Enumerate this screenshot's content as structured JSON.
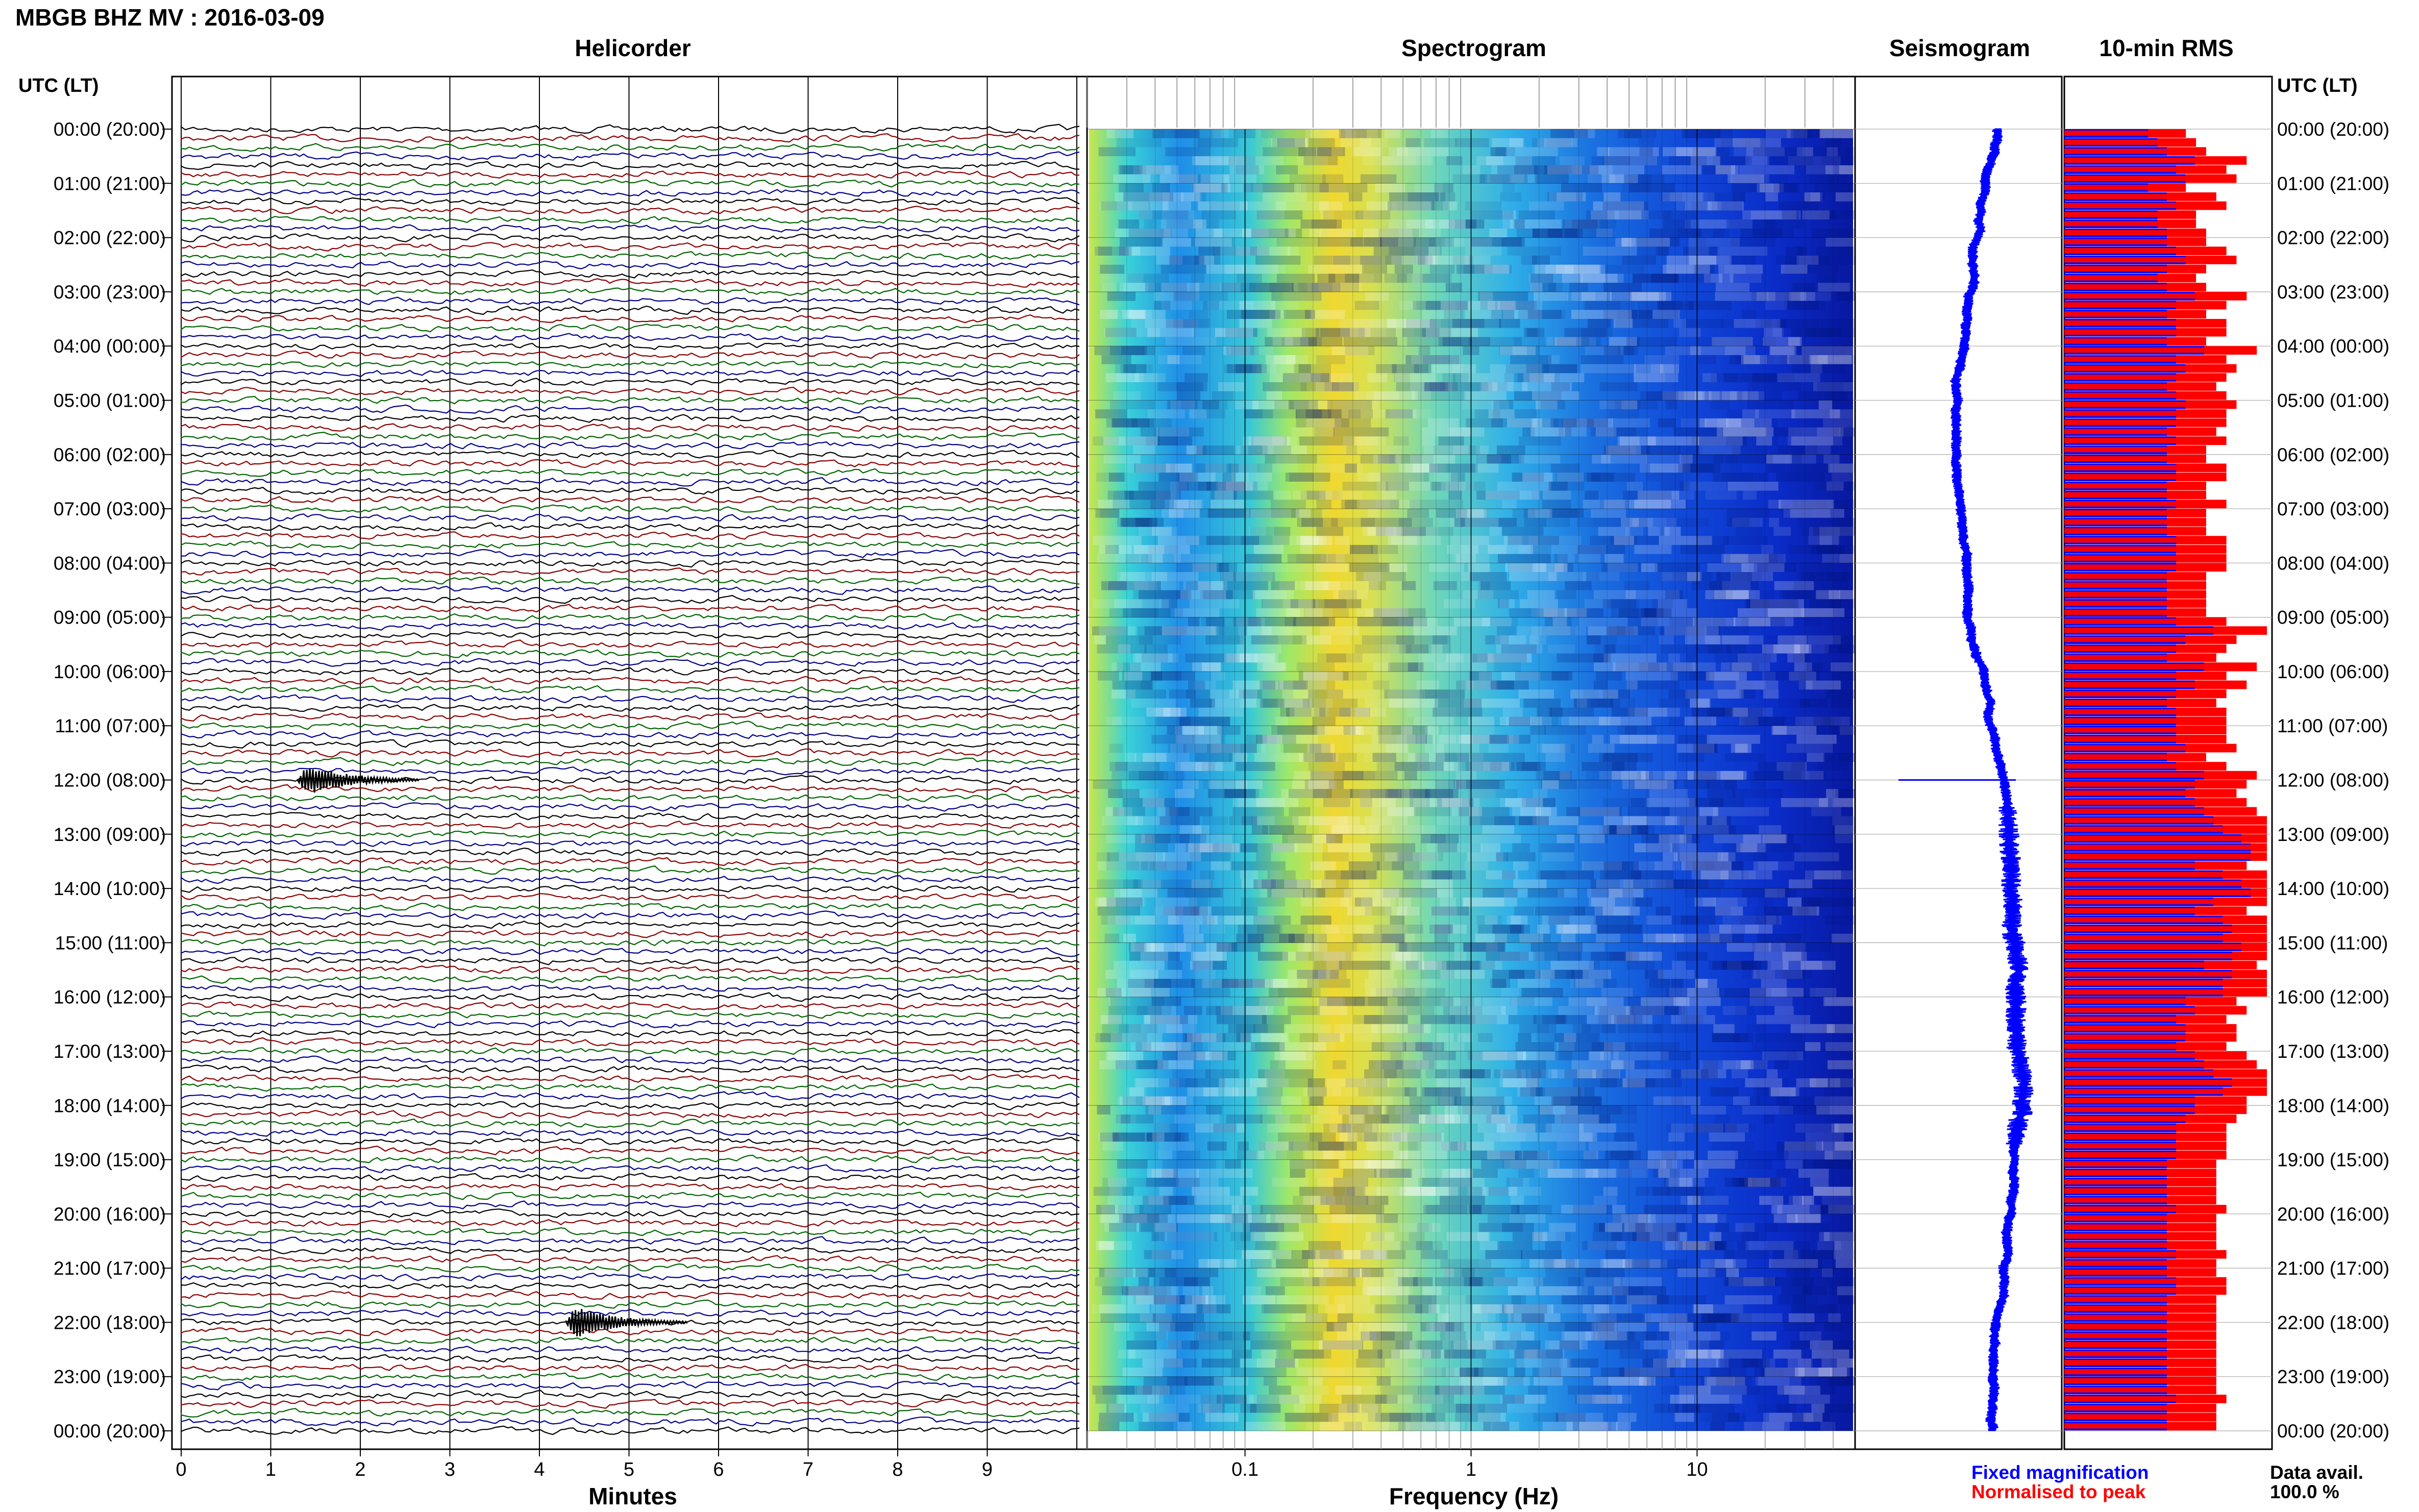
{
  "page": {
    "title": "MBGB BHZ MV : 2016-03-09",
    "left_axis_header": "UTC (LT)",
    "right_axis_header": "UTC (LT)"
  },
  "panels": {
    "helicorder": "Helicorder",
    "spectrogram": "Spectrogram",
    "seismogram": "Seismogram",
    "rms": "10-min RMS"
  },
  "axes": {
    "helicorder_xlabel": "Minutes",
    "spectrogram_xlabel": "Frequency (Hz)",
    "helicorder_ticks": [
      "0",
      "1",
      "2",
      "3",
      "4",
      "5",
      "6",
      "7",
      "8",
      "9"
    ],
    "spectrogram_ticks": [
      "0.1",
      "1",
      "10"
    ],
    "time_labels": [
      "00:00 (20:00)",
      "01:00 (21:00)",
      "02:00 (22:00)",
      "03:00 (23:00)",
      "04:00 (00:00)",
      "05:00 (01:00)",
      "06:00 (02:00)",
      "07:00 (03:00)",
      "08:00 (04:00)",
      "09:00 (05:00)",
      "10:00 (06:00)",
      "11:00 (07:00)",
      "12:00 (08:00)",
      "13:00 (09:00)",
      "14:00 (10:00)",
      "15:00 (11:00)",
      "16:00 (12:00)",
      "17:00 (13:00)",
      "18:00 (14:00)",
      "19:00 (15:00)",
      "20:00 (16:00)",
      "21:00 (17:00)",
      "22:00 (18:00)",
      "23:00 (19:00)",
      "00:00 (20:00)"
    ]
  },
  "legend": {
    "fixed": "Fixed magnification",
    "normalised": "Normalised to peak",
    "fixed_color": "#0000ff",
    "normalised_color": "#ff0000",
    "data_avail_label": "Data avail.",
    "data_avail_value": "100.0 %"
  },
  "chart_data": {
    "type": "heatmap",
    "trace_colors": [
      "#000000",
      "#8b0000",
      "#006400",
      "#00008b"
    ],
    "helicorder": {
      "minutes_range": [
        0,
        10
      ],
      "lines_per_hour": 6,
      "hours": 24,
      "events": [
        {
          "hour": 12,
          "minute": 1.6
        },
        {
          "hour": 22,
          "minute": 4.6
        }
      ]
    },
    "spectrogram": {
      "frequency_range_hz": [
        0.02,
        50
      ],
      "scale": "log"
    },
    "rms_blue": [
      0.45,
      0.5,
      0.55,
      0.7,
      0.6,
      0.65,
      0.45,
      0.55,
      0.6,
      0.5,
      0.5,
      0.55,
      0.55,
      0.6,
      0.65,
      0.55,
      0.5,
      0.55,
      0.7,
      0.6,
      0.55,
      0.6,
      0.6,
      0.55,
      0.75,
      0.6,
      0.65,
      0.6,
      0.55,
      0.6,
      0.65,
      0.6,
      0.6,
      0.55,
      0.6,
      0.55,
      0.55,
      0.6,
      0.6,
      0.55,
      0.55,
      0.6,
      0.55,
      0.55,
      0.55,
      0.6,
      0.6,
      0.6,
      0.6,
      0.55,
      0.55,
      0.55,
      0.55,
      0.55,
      0.6,
      0.8,
      0.65,
      0.6,
      0.55,
      0.75,
      0.6,
      0.7,
      0.6,
      0.55,
      0.6,
      0.6,
      0.6,
      0.6,
      0.65,
      0.55,
      0.6,
      0.75,
      0.7,
      0.65,
      0.7,
      0.75,
      0.8,
      0.85,
      0.95,
      1.0,
      1.0,
      0.7,
      0.85,
      0.95,
      1.0,
      0.8,
      0.7,
      0.85,
      0.9,
      0.85,
      0.95,
      0.9,
      0.75,
      0.9,
      0.85,
      0.85,
      0.65,
      0.7,
      0.6,
      0.65,
      0.65,
      0.6,
      0.7,
      0.75,
      0.8,
      0.9,
      0.85,
      0.7,
      0.7,
      0.65,
      0.6,
      0.6,
      0.6,
      0.6,
      0.55,
      0.55,
      0.55,
      0.55,
      0.55,
      0.6,
      0.55,
      0.55,
      0.55,
      0.55,
      0.6,
      0.55,
      0.55,
      0.6,
      0.6,
      0.55,
      0.55,
      0.55,
      0.55,
      0.55,
      0.55,
      0.55,
      0.55,
      0.55,
      0.55,
      0.55,
      0.6,
      0.55,
      0.55,
      0.55
    ],
    "rms_red": [
      0.6,
      0.65,
      0.7,
      0.9,
      0.8,
      0.85,
      0.6,
      0.75,
      0.8,
      0.65,
      0.65,
      0.7,
      0.7,
      0.8,
      0.85,
      0.7,
      0.65,
      0.7,
      0.9,
      0.8,
      0.7,
      0.8,
      0.8,
      0.7,
      0.95,
      0.8,
      0.85,
      0.8,
      0.75,
      0.8,
      0.85,
      0.8,
      0.8,
      0.75,
      0.8,
      0.7,
      0.7,
      0.8,
      0.8,
      0.7,
      0.7,
      0.8,
      0.7,
      0.7,
      0.7,
      0.8,
      0.8,
      0.8,
      0.8,
      0.7,
      0.7,
      0.7,
      0.7,
      0.7,
      0.8,
      1.0,
      0.85,
      0.8,
      0.75,
      0.95,
      0.8,
      0.9,
      0.8,
      0.75,
      0.8,
      0.8,
      0.8,
      0.8,
      0.85,
      0.7,
      0.8,
      0.95,
      0.9,
      0.85,
      0.9,
      0.95,
      1.0,
      1.0,
      1.0,
      1.0,
      1.0,
      0.9,
      1.0,
      1.0,
      1.0,
      1.0,
      0.9,
      1.0,
      1.0,
      1.0,
      1.0,
      1.0,
      0.95,
      1.0,
      1.0,
      1.0,
      0.85,
      0.9,
      0.8,
      0.85,
      0.85,
      0.8,
      0.9,
      0.95,
      1.0,
      1.0,
      1.0,
      0.9,
      0.9,
      0.85,
      0.8,
      0.8,
      0.8,
      0.8,
      0.75,
      0.75,
      0.75,
      0.75,
      0.75,
      0.8,
      0.75,
      0.75,
      0.75,
      0.75,
      0.8,
      0.75,
      0.75,
      0.8,
      0.8,
      0.75,
      0.75,
      0.75,
      0.75,
      0.75,
      0.75,
      0.75,
      0.75,
      0.75,
      0.75,
      0.75,
      0.8,
      0.75,
      0.75,
      0.75
    ]
  }
}
